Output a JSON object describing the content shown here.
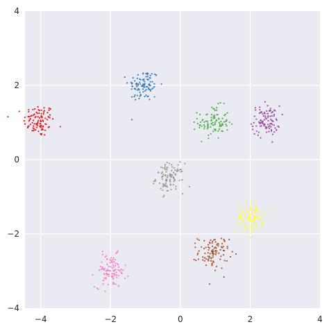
{
  "chart_data": {
    "type": "scatter",
    "title": "",
    "xlabel": "",
    "ylabel": "",
    "xlim": [
      -4.45,
      4.0
    ],
    "ylim": [
      -4.0,
      4.0
    ],
    "grid": true,
    "background": "#eaeaf2",
    "grid_color": "#ffffff",
    "x_ticks": [
      {
        "value": -4,
        "label": "−4"
      },
      {
        "value": -2,
        "label": "−2"
      },
      {
        "value": 0,
        "label": "0"
      },
      {
        "value": 2,
        "label": "2"
      },
      {
        "value": 4,
        "label": "4"
      }
    ],
    "y_ticks": [
      {
        "value": -4,
        "label": "−4"
      },
      {
        "value": -2,
        "label": "−2"
      },
      {
        "value": 0,
        "label": "0"
      },
      {
        "value": 2,
        "label": "2"
      },
      {
        "value": 4,
        "label": "4"
      }
    ],
    "clusters": [
      {
        "center": [
          -4.05,
          1.05
        ],
        "spread": 0.22,
        "n": 100,
        "color": "#e41a1c"
      },
      {
        "center": [
          -1.05,
          2.0
        ],
        "spread": 0.22,
        "n": 100,
        "color": "#377eb8"
      },
      {
        "center": [
          0.95,
          1.0
        ],
        "spread": 0.22,
        "n": 100,
        "color": "#4daf4a"
      },
      {
        "center": [
          2.45,
          1.05
        ],
        "spread": 0.2,
        "n": 100,
        "color": "#984ea3"
      },
      {
        "center": [
          -0.3,
          -0.5
        ],
        "spread": 0.2,
        "n": 100,
        "color": "#999999"
      },
      {
        "center": [
          2.0,
          -1.55
        ],
        "spread": 0.2,
        "n": 100,
        "color": "#ffff33"
      },
      {
        "center": [
          0.95,
          -2.5
        ],
        "spread": 0.22,
        "n": 100,
        "color": "#a65628"
      },
      {
        "center": [
          -2.0,
          -3.0
        ],
        "spread": 0.22,
        "n": 100,
        "color": "#f781bf"
      }
    ]
  }
}
